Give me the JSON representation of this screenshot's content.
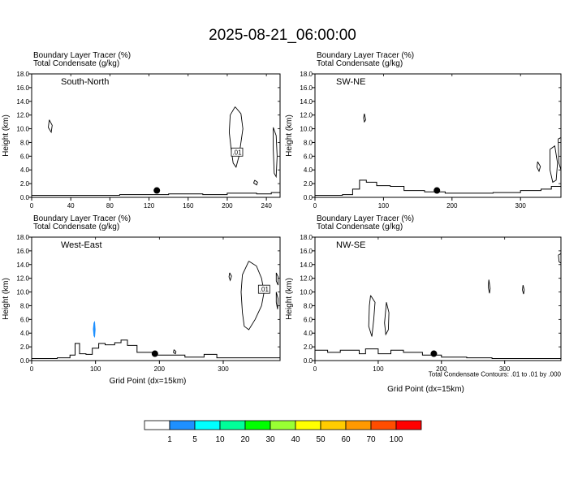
{
  "figure": {
    "title": "2025-08-21_06:00:00",
    "footnote": "Total Condensate Contours: .01 to .01 by .000"
  },
  "chart_data": [
    {
      "type": "line",
      "panel": "South-North",
      "header_line1": "Boundary Layer Tracer   (%)",
      "header_line2": "Total Condensate   (g/kg)",
      "cross_section_label": "South-North",
      "ylabel": "Height (km)",
      "xlabel": "",
      "xlim": [
        0,
        254
      ],
      "ylim": [
        0,
        18
      ],
      "xticks": [
        0,
        40,
        80,
        120,
        160,
        200,
        240
      ],
      "yticks": [
        "0.0",
        "2.0",
        "4.0",
        "6.0",
        "8.0",
        "10.0",
        "12.0",
        "14.0",
        "16.0",
        "18.0"
      ],
      "contour_label": ".01",
      "contour_label_at": [
        210,
        6.6
      ],
      "marker_point": [
        128,
        1.0
      ],
      "terrain": [
        [
          0,
          0.3
        ],
        [
          40,
          0.3
        ],
        [
          60,
          0.3
        ],
        [
          90,
          0.4
        ],
        [
          120,
          0.4
        ],
        [
          140,
          0.5
        ],
        [
          175,
          0.4
        ],
        [
          200,
          0.6
        ],
        [
          230,
          0.5
        ],
        [
          245,
          0.7
        ],
        [
          254,
          0.7
        ]
      ],
      "cloud_contours": [
        [
          [
            208,
            13.2
          ],
          [
            214,
            12.2
          ],
          [
            216,
            10
          ],
          [
            214,
            8
          ],
          [
            212,
            6
          ],
          [
            209,
            4.4
          ],
          [
            206,
            5
          ],
          [
            204,
            7
          ],
          [
            202,
            9.5
          ],
          [
            203,
            12
          ],
          [
            208,
            13.2
          ]
        ],
        [
          [
            18,
            11.3
          ],
          [
            21,
            10.5
          ],
          [
            20,
            9.5
          ],
          [
            17,
            10.2
          ],
          [
            18,
            11.3
          ]
        ],
        [
          [
            247,
            10.2
          ],
          [
            250,
            9
          ],
          [
            251,
            6
          ],
          [
            250,
            3
          ],
          [
            248,
            3.5
          ],
          [
            247,
            7
          ],
          [
            247,
            10.2
          ]
        ],
        [
          [
            228,
            2.5
          ],
          [
            231,
            2.2
          ],
          [
            230,
            1.8
          ],
          [
            227,
            2.1
          ],
          [
            228,
            2.5
          ]
        ]
      ]
    },
    {
      "type": "line",
      "panel": "SW-NE",
      "header_line1": "Boundary Layer Tracer   (%)",
      "header_line2": "Total Condensate   (g/kg)",
      "cross_section_label": "SW-NE",
      "ylabel": "Height (km)",
      "xlabel": "",
      "xlim": [
        0,
        359
      ],
      "ylim": [
        0,
        18
      ],
      "xticks": [
        0,
        100,
        200,
        300
      ],
      "yticks": [
        "0.0",
        "2.0",
        "4.0",
        "6.0",
        "8.0",
        "10.0",
        "12.0",
        "14.0",
        "16.0",
        "18.0"
      ],
      "marker_point": [
        178,
        1.0
      ],
      "terrain": [
        [
          0,
          0.3
        ],
        [
          40,
          0.4
        ],
        [
          55,
          1.2
        ],
        [
          65,
          2.5
        ],
        [
          75,
          2.2
        ],
        [
          90,
          1.7
        ],
        [
          110,
          1.6
        ],
        [
          130,
          1.0
        ],
        [
          160,
          0.8
        ],
        [
          190,
          0.6
        ],
        [
          220,
          0.6
        ],
        [
          260,
          0.7
        ],
        [
          300,
          1.0
        ],
        [
          330,
          1.2
        ],
        [
          345,
          1.6
        ],
        [
          359,
          1.6
        ]
      ],
      "cloud_contours": [
        [
          [
            72,
            12.2
          ],
          [
            74,
            11.3
          ],
          [
            72,
            11
          ],
          [
            71,
            11.6
          ],
          [
            72,
            12.2
          ]
        ],
        [
          [
            343,
            7
          ],
          [
            350,
            7.5
          ],
          [
            354,
            5
          ],
          [
            352,
            2.5
          ],
          [
            347,
            2.2
          ],
          [
            343,
            4
          ],
          [
            343,
            7
          ]
        ],
        [
          [
            355,
            8.5
          ],
          [
            359,
            8.7
          ],
          [
            359,
            4
          ],
          [
            356,
            5
          ],
          [
            355,
            8.5
          ]
        ],
        [
          [
            325,
            5.2
          ],
          [
            329,
            4.5
          ],
          [
            327,
            3.8
          ],
          [
            324,
            4.4
          ],
          [
            325,
            5.2
          ]
        ]
      ]
    },
    {
      "type": "line",
      "panel": "West-East",
      "header_line1": "Boundary Layer Tracer   (%)",
      "header_line2": "Total Condensate   (g/kg)",
      "cross_section_label": "West-East",
      "ylabel": "Height (km)",
      "xlabel": "Grid Point (dx=15km)",
      "xlim": [
        0,
        389
      ],
      "ylim": [
        0,
        18
      ],
      "xticks": [
        0,
        100,
        200,
        300
      ],
      "yticks": [
        "0.0",
        "2.0",
        "4.0",
        "6.0",
        "8.0",
        "10.0",
        "12.0",
        "14.0",
        "16.0",
        "18.0"
      ],
      "contour_label": ".01",
      "contour_label_at": [
        364,
        10.4
      ],
      "marker_point": [
        193,
        1.0
      ],
      "tracer_shading": [
        {
          "level": "1",
          "points": [
            [
              97,
              5.5
            ],
            [
              99,
              5.8
            ],
            [
              100,
              4.5
            ],
            [
              99,
              3.3
            ],
            [
              97,
              3.6
            ],
            [
              96,
              4.6
            ],
            [
              97,
              5.5
            ]
          ]
        }
      ],
      "terrain": [
        [
          0,
          0.3
        ],
        [
          40,
          0.4
        ],
        [
          60,
          0.8
        ],
        [
          68,
          2.5
        ],
        [
          75,
          1.0
        ],
        [
          85,
          0.9
        ],
        [
          95,
          1.8
        ],
        [
          105,
          2.5
        ],
        [
          115,
          2.3
        ],
        [
          130,
          2.6
        ],
        [
          140,
          3.0
        ],
        [
          150,
          2.2
        ],
        [
          165,
          1.2
        ],
        [
          190,
          0.8
        ],
        [
          240,
          0.5
        ],
        [
          270,
          0.9
        ],
        [
          290,
          0.4
        ],
        [
          389,
          0.4
        ]
      ],
      "cloud_contours": [
        [
          [
            340,
            14.5
          ],
          [
            352,
            13.8
          ],
          [
            360,
            12
          ],
          [
            364,
            10
          ],
          [
            360,
            8
          ],
          [
            350,
            6
          ],
          [
            340,
            4.5
          ],
          [
            333,
            5
          ],
          [
            330,
            7
          ],
          [
            328,
            10
          ],
          [
            330,
            12.5
          ],
          [
            340,
            14.5
          ]
        ],
        [
          [
            383,
            12.8
          ],
          [
            386,
            12.2
          ],
          [
            386,
            11
          ],
          [
            383,
            11.6
          ],
          [
            383,
            12.8
          ]
        ],
        [
          [
            383,
            10
          ],
          [
            386,
            9
          ],
          [
            385,
            7.5
          ],
          [
            383,
            8.5
          ],
          [
            383,
            10
          ]
        ],
        [
          [
            310,
            12.8
          ],
          [
            313,
            12.3
          ],
          [
            311,
            11.7
          ],
          [
            309,
            12.2
          ],
          [
            310,
            12.8
          ]
        ],
        [
          [
            223,
            1.6
          ],
          [
            226,
            1.3
          ],
          [
            225,
            1.0
          ],
          [
            222,
            1.2
          ],
          [
            223,
            1.6
          ]
        ]
      ]
    },
    {
      "type": "line",
      "panel": "NW-SE",
      "header_line1": "Boundary Layer Tracer   (%)",
      "header_line2": "Total Condensate   (g/kg)",
      "cross_section_label": "NW-SE",
      "ylabel": "Height (km)",
      "xlabel": "Grid Point (dx=15km)",
      "xlim": [
        0,
        389
      ],
      "ylim": [
        0,
        18
      ],
      "xticks": [
        0,
        100,
        200,
        300
      ],
      "yticks": [
        "0.0",
        "2.0",
        "4.0",
        "6.0",
        "8.0",
        "10.0",
        "12.0",
        "14.0",
        "16.0",
        "18.0"
      ],
      "marker_point": [
        188,
        1.0
      ],
      "terrain": [
        [
          0,
          1.5
        ],
        [
          20,
          1.2
        ],
        [
          40,
          1.5
        ],
        [
          70,
          1.0
        ],
        [
          80,
          1.7
        ],
        [
          100,
          1.0
        ],
        [
          120,
          1.5
        ],
        [
          140,
          1.2
        ],
        [
          170,
          0.8
        ],
        [
          200,
          0.5
        ],
        [
          240,
          0.4
        ],
        [
          280,
          0.3
        ],
        [
          389,
          0.3
        ]
      ],
      "cloud_contours": [
        [
          [
            88,
            9.5
          ],
          [
            95,
            8.5
          ],
          [
            93,
            6
          ],
          [
            90,
            3.5
          ],
          [
            85,
            5
          ],
          [
            86,
            8
          ],
          [
            88,
            9.5
          ]
        ],
        [
          [
            113,
            8.5
          ],
          [
            117,
            7
          ],
          [
            116,
            4.5
          ],
          [
            112,
            3.8
          ],
          [
            110,
            5.5
          ],
          [
            113,
            8.5
          ]
        ],
        [
          [
            275,
            11.8
          ],
          [
            277,
            10.5
          ],
          [
            276,
            9.8
          ],
          [
            274,
            10.7
          ],
          [
            275,
            11.8
          ]
        ],
        [
          [
            329,
            11
          ],
          [
            331,
            10.3
          ],
          [
            330,
            9.7
          ],
          [
            328,
            10.3
          ],
          [
            329,
            11
          ]
        ],
        [
          [
            385,
            15.4
          ],
          [
            389,
            15.6
          ],
          [
            389,
            14.2
          ],
          [
            386,
            14.4
          ],
          [
            385,
            15.4
          ]
        ]
      ]
    }
  ],
  "colorbar": {
    "labels": [
      "1",
      "5",
      "10",
      "20",
      "30",
      "40",
      "50",
      "60",
      "70",
      "100"
    ],
    "colors": [
      "#ffffff",
      "#1e90ff",
      "#00ffff",
      "#00ff99",
      "#00ff00",
      "#99ff33",
      "#ffff00",
      "#ffcc00",
      "#ff9900",
      "#ff4d00",
      "#ff0000"
    ]
  }
}
